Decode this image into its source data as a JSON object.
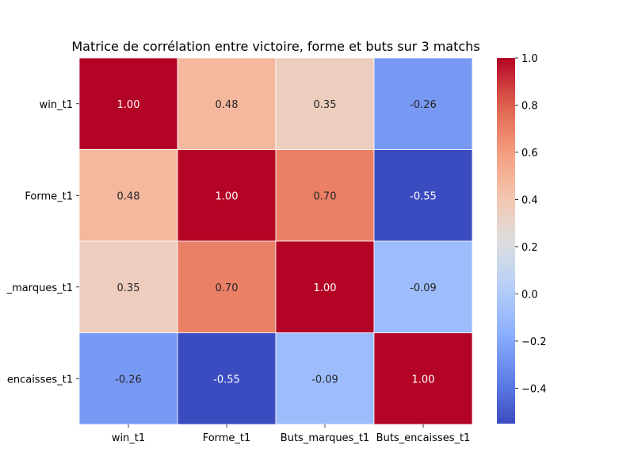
{
  "chart_data": {
    "type": "heatmap",
    "title": "Matrice de corrélation entre victoire, forme et buts sur 3 matchs",
    "row_labels": [
      "win_t1",
      "Forme_t1",
      "_marques_t1",
      "encaisses_t1"
    ],
    "col_labels": [
      "win_t1",
      "Forme_t1",
      "Buts_marques_t1",
      "Buts_encaisses_t1"
    ],
    "values": [
      [
        1.0,
        0.48,
        0.35,
        -0.26
      ],
      [
        0.48,
        1.0,
        0.7,
        -0.55
      ],
      [
        0.35,
        0.7,
        1.0,
        -0.09
      ],
      [
        -0.26,
        -0.55,
        -0.09,
        1.0
      ]
    ],
    "value_format": "2 decimals",
    "colormap": "coolwarm",
    "colorbar_range": [
      -0.55,
      1.0
    ],
    "colorbar_ticks": [
      "1.0",
      "0.8",
      "0.6",
      "0.4",
      "0.2",
      "0.0",
      "−0.2",
      "−0.4"
    ],
    "colorbar_tick_values": [
      1.0,
      0.8,
      0.6,
      0.4,
      0.2,
      0.0,
      -0.2,
      -0.4
    ],
    "annotations": true,
    "grid": false,
    "cell_separator_color": "#ffffff"
  }
}
